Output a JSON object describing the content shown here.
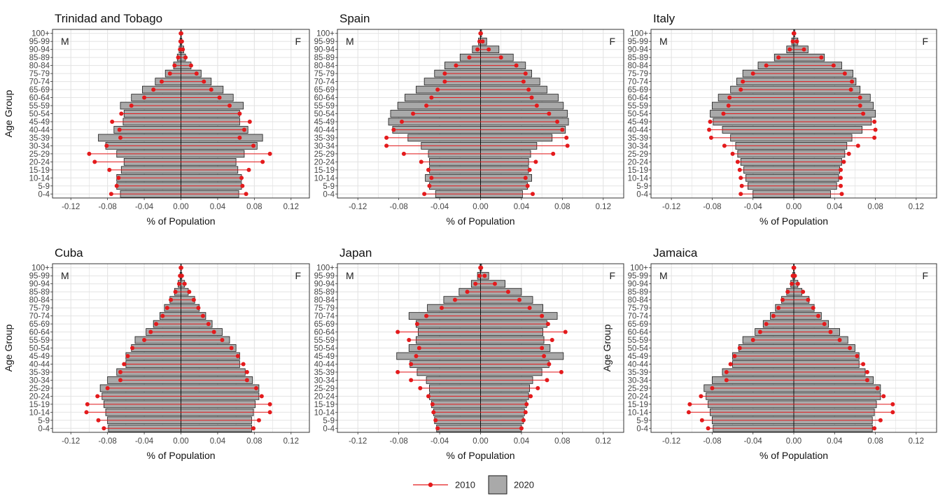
{
  "chart_data": {
    "type": "bar",
    "layout": "small-multiples population pyramids, 2 rows x 3 columns, shared legend at bottom center",
    "categories": [
      "0-4",
      "5-9",
      "10-14",
      "15-19",
      "20-24",
      "25-29",
      "30-34",
      "35-39",
      "40-44",
      "45-49",
      "50-54",
      "55-59",
      "60-64",
      "65-69",
      "70-74",
      "75-79",
      "80-84",
      "85-89",
      "90-94",
      "95-99",
      "100+"
    ],
    "xlabel": "% of Population",
    "ylabel": "Age Group",
    "xlim": [
      -0.14,
      0.14
    ],
    "xticks": [
      -0.12,
      -0.08,
      -0.04,
      0.0,
      0.04,
      0.08,
      0.12
    ],
    "xtick_labels": [
      "-0.12",
      "-0.08",
      "-0.04",
      "0.00",
      "0.04",
      "0.08",
      "0.12"
    ],
    "male_label": "M",
    "female_label": "F",
    "grid": true,
    "legend": {
      "position": "bottom",
      "items": [
        {
          "label": "2010",
          "style": "red line with point markers",
          "color": "#e41a1c"
        },
        {
          "label": "2020",
          "style": "grey bars with black outline",
          "color": "#a9a9a9"
        }
      ]
    },
    "colors": {
      "bar_fill": "#a9a9a9",
      "bar_stroke": "#1a1a1a",
      "line_2010": "#e41a1c",
      "grid": "#e3e3e3"
    },
    "panels": [
      {
        "title": "Trinidad and Tobago",
        "show_ylabel": true,
        "male_2020": [
          0.066,
          0.07,
          0.07,
          0.065,
          0.062,
          0.07,
          0.082,
          0.09,
          0.073,
          0.063,
          0.062,
          0.066,
          0.054,
          0.042,
          0.028,
          0.017,
          0.008,
          0.004,
          0.002,
          0.001,
          0.0003
        ],
        "female_2020": [
          0.063,
          0.066,
          0.066,
          0.062,
          0.06,
          0.069,
          0.083,
          0.089,
          0.073,
          0.064,
          0.064,
          0.068,
          0.057,
          0.046,
          0.033,
          0.022,
          0.011,
          0.005,
          0.003,
          0.001,
          0.0004
        ],
        "male_2010": [
          0.076,
          0.07,
          0.068,
          0.078,
          0.094,
          0.1,
          0.081,
          0.066,
          0.067,
          0.075,
          0.065,
          0.054,
          0.04,
          0.03,
          0.021,
          0.012,
          0.007,
          0.003,
          0.001,
          0.0005,
          0.0002
        ],
        "female_2010": [
          0.071,
          0.067,
          0.066,
          0.074,
          0.089,
          0.097,
          0.079,
          0.064,
          0.069,
          0.075,
          0.064,
          0.053,
          0.042,
          0.033,
          0.025,
          0.017,
          0.011,
          0.005,
          0.002,
          0.001,
          0.0003
        ]
      },
      {
        "title": "Spain",
        "show_ylabel": false,
        "male_2020": [
          0.044,
          0.05,
          0.054,
          0.05,
          0.05,
          0.051,
          0.058,
          0.071,
          0.086,
          0.09,
          0.088,
          0.081,
          0.074,
          0.063,
          0.055,
          0.045,
          0.035,
          0.02,
          0.008,
          0.002,
          0.0003
        ],
        "female_2020": [
          0.041,
          0.046,
          0.05,
          0.047,
          0.047,
          0.049,
          0.055,
          0.07,
          0.083,
          0.086,
          0.085,
          0.081,
          0.076,
          0.065,
          0.058,
          0.05,
          0.044,
          0.032,
          0.018,
          0.006,
          0.001
        ],
        "male_2010": [
          0.055,
          0.05,
          0.048,
          0.051,
          0.058,
          0.075,
          0.092,
          0.092,
          0.085,
          0.077,
          0.066,
          0.053,
          0.048,
          0.042,
          0.035,
          0.035,
          0.024,
          0.011,
          0.003,
          0.001,
          0.0001
        ],
        "female_2010": [
          0.051,
          0.046,
          0.044,
          0.048,
          0.054,
          0.071,
          0.085,
          0.084,
          0.08,
          0.075,
          0.067,
          0.055,
          0.05,
          0.047,
          0.042,
          0.044,
          0.035,
          0.02,
          0.008,
          0.002,
          0.0003
        ]
      },
      {
        "title": "Italy",
        "show_ylabel": false,
        "male_2020": [
          0.04,
          0.045,
          0.047,
          0.049,
          0.052,
          0.055,
          0.057,
          0.062,
          0.07,
          0.079,
          0.082,
          0.08,
          0.074,
          0.062,
          0.056,
          0.05,
          0.035,
          0.019,
          0.007,
          0.002,
          0.0002
        ],
        "female_2020": [
          0.036,
          0.042,
          0.044,
          0.045,
          0.047,
          0.05,
          0.052,
          0.057,
          0.067,
          0.076,
          0.08,
          0.078,
          0.075,
          0.065,
          0.061,
          0.058,
          0.047,
          0.03,
          0.014,
          0.004,
          0.001
        ],
        "male_2010": [
          0.052,
          0.051,
          0.052,
          0.053,
          0.055,
          0.06,
          0.068,
          0.081,
          0.083,
          0.082,
          0.069,
          0.064,
          0.063,
          0.052,
          0.05,
          0.04,
          0.027,
          0.015,
          0.004,
          0.001,
          0.0001
        ],
        "female_2010": [
          0.047,
          0.046,
          0.046,
          0.046,
          0.049,
          0.054,
          0.063,
          0.079,
          0.08,
          0.079,
          0.068,
          0.065,
          0.065,
          0.056,
          0.057,
          0.05,
          0.039,
          0.027,
          0.01,
          0.003,
          0.0004
        ]
      },
      {
        "title": "Cuba",
        "show_ylabel": true,
        "male_2020": [
          0.079,
          0.08,
          0.082,
          0.084,
          0.086,
          0.088,
          0.08,
          0.07,
          0.06,
          0.06,
          0.054,
          0.05,
          0.038,
          0.03,
          0.023,
          0.018,
          0.012,
          0.007,
          0.003,
          0.001,
          0.0003
        ],
        "female_2020": [
          0.077,
          0.077,
          0.079,
          0.081,
          0.085,
          0.085,
          0.078,
          0.07,
          0.064,
          0.064,
          0.06,
          0.053,
          0.045,
          0.034,
          0.027,
          0.02,
          0.015,
          0.008,
          0.004,
          0.001,
          0.0004
        ],
        "male_2010": [
          0.084,
          0.09,
          0.103,
          0.102,
          0.091,
          0.08,
          0.066,
          0.066,
          0.062,
          0.058,
          0.053,
          0.04,
          0.033,
          0.027,
          0.02,
          0.015,
          0.011,
          0.006,
          0.002,
          0.001,
          0.0002
        ],
        "female_2010": [
          0.079,
          0.085,
          0.097,
          0.097,
          0.088,
          0.082,
          0.072,
          0.072,
          0.068,
          0.062,
          0.055,
          0.045,
          0.036,
          0.03,
          0.024,
          0.019,
          0.014,
          0.009,
          0.004,
          0.001,
          0.0003
        ]
      },
      {
        "title": "Japan",
        "show_ylabel": false,
        "male_2020": [
          0.043,
          0.045,
          0.046,
          0.048,
          0.05,
          0.05,
          0.053,
          0.062,
          0.069,
          0.082,
          0.07,
          0.063,
          0.061,
          0.063,
          0.07,
          0.052,
          0.036,
          0.021,
          0.009,
          0.003,
          0.0005
        ],
        "female_2020": [
          0.04,
          0.042,
          0.043,
          0.045,
          0.047,
          0.048,
          0.051,
          0.06,
          0.067,
          0.081,
          0.068,
          0.062,
          0.061,
          0.065,
          0.075,
          0.061,
          0.051,
          0.04,
          0.024,
          0.008,
          0.001
        ],
        "male_2010": [
          0.042,
          0.044,
          0.046,
          0.047,
          0.051,
          0.059,
          0.068,
          0.081,
          0.068,
          0.063,
          0.06,
          0.07,
          0.081,
          0.062,
          0.053,
          0.038,
          0.025,
          0.013,
          0.005,
          0.001,
          0.0002
        ],
        "female_2010": [
          0.04,
          0.042,
          0.044,
          0.045,
          0.049,
          0.056,
          0.065,
          0.079,
          0.067,
          0.062,
          0.06,
          0.07,
          0.083,
          0.066,
          0.06,
          0.048,
          0.038,
          0.027,
          0.014,
          0.004,
          0.0005
        ]
      },
      {
        "title": "Jamaica",
        "show_ylabel": true,
        "male_2020": [
          0.079,
          0.08,
          0.082,
          0.084,
          0.086,
          0.088,
          0.08,
          0.07,
          0.06,
          0.06,
          0.054,
          0.05,
          0.038,
          0.03,
          0.023,
          0.018,
          0.012,
          0.007,
          0.003,
          0.001,
          0.0003
        ],
        "female_2020": [
          0.077,
          0.077,
          0.079,
          0.081,
          0.085,
          0.085,
          0.078,
          0.07,
          0.064,
          0.064,
          0.06,
          0.053,
          0.045,
          0.034,
          0.027,
          0.02,
          0.015,
          0.008,
          0.004,
          0.001,
          0.0004
        ],
        "male_2010": [
          0.084,
          0.09,
          0.103,
          0.102,
          0.091,
          0.08,
          0.066,
          0.066,
          0.062,
          0.058,
          0.053,
          0.04,
          0.033,
          0.027,
          0.02,
          0.015,
          0.011,
          0.006,
          0.002,
          0.001,
          0.0002
        ],
        "female_2010": [
          0.079,
          0.085,
          0.097,
          0.097,
          0.088,
          0.082,
          0.072,
          0.072,
          0.068,
          0.062,
          0.055,
          0.045,
          0.036,
          0.03,
          0.024,
          0.019,
          0.014,
          0.009,
          0.004,
          0.001,
          0.0003
        ]
      }
    ]
  }
}
